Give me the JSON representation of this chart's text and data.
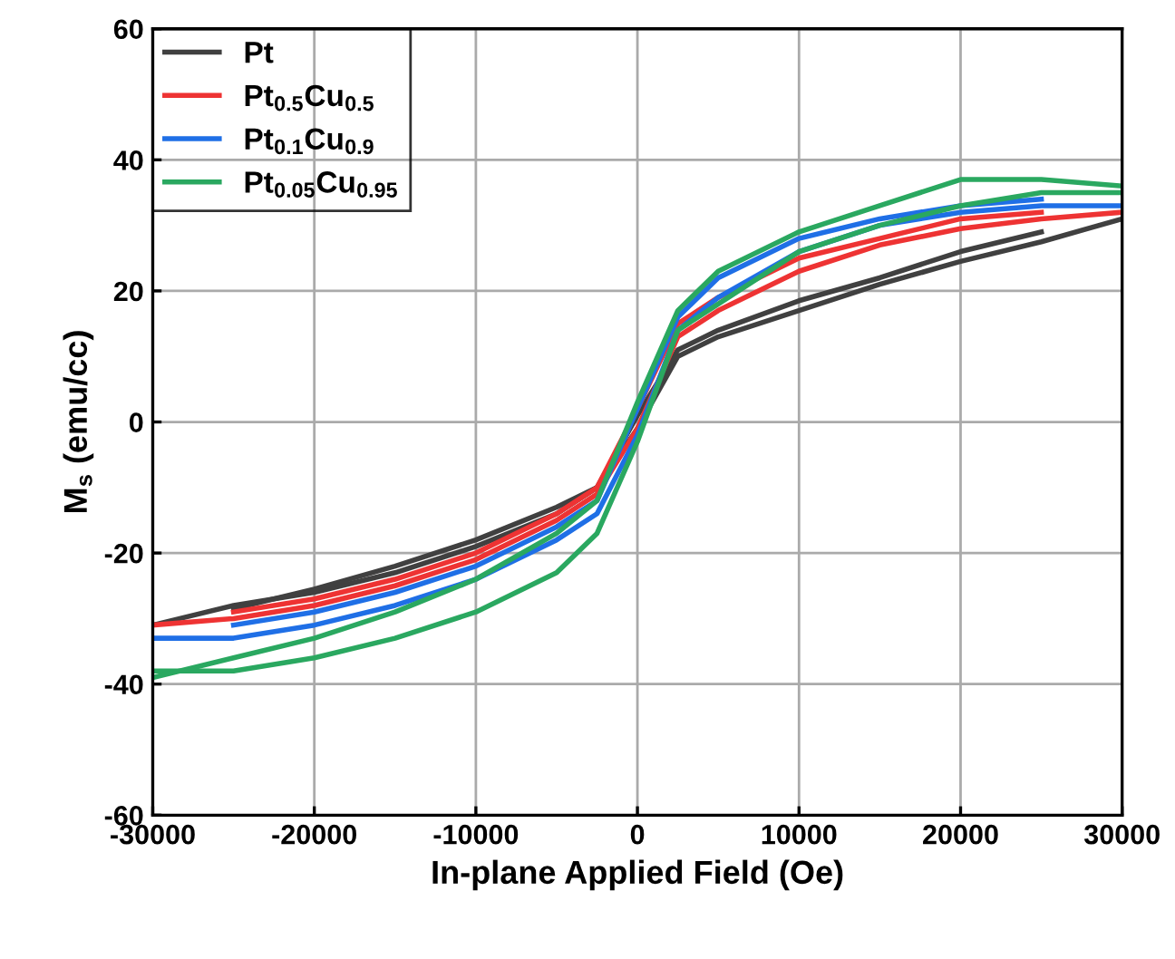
{
  "chart_data": {
    "type": "line",
    "xlabel": "In-plane Applied Field (Oe)",
    "ylabel": "M$_{s}$ (emu/cc)",
    "xlim": [
      -30000,
      30000
    ],
    "xticks": [
      -30000,
      -20000,
      -10000,
      0,
      10000,
      20000,
      30000
    ],
    "ylim": [
      -60,
      60
    ],
    "yticks": [
      -60,
      -40,
      -20,
      0,
      20,
      40,
      60
    ],
    "grid": true,
    "legend": "top left",
    "line_style": "solid",
    "marker": "none",
    "x": [
      -30000,
      -25000,
      -20000,
      -15000,
      -10000,
      -5000,
      -2500,
      0,
      2500,
      5000,
      10000,
      15000,
      20000,
      25000,
      30000
    ],
    "series": [
      {
        "name": "Pt",
        "color": "#404040",
        "values": [
          -31,
          -28,
          -26,
          -23,
          -19,
          -14,
          -10,
          -1,
          10,
          13,
          17,
          21,
          24.5,
          27.5,
          31
        ]
      },
      {
        "color": "#404040",
        "x": [
          -25000,
          -20000,
          -15000,
          -10000,
          -5000,
          -2500,
          0,
          2500,
          5000,
          10000,
          15000,
          20000,
          25000
        ],
        "values": [
          -28.5,
          -25.5,
          -22,
          -18,
          -13,
          -10,
          1,
          11,
          14,
          18.5,
          22,
          26,
          29
        ]
      },
      {
        "name": "Pt$_{0.5}$Cu$_{0.5}$",
        "color": "#ee3333",
        "values": [
          -31,
          -30,
          -28,
          -25,
          -21,
          -15,
          -11,
          -1,
          13,
          17,
          23,
          27,
          29.5,
          31,
          32
        ]
      },
      {
        "color": "#ee3333",
        "x": [
          -25000,
          -20000,
          -15000,
          -10000,
          -5000,
          -2500,
          0,
          2500,
          5000,
          10000,
          15000,
          20000,
          25000
        ],
        "values": [
          -29,
          -27,
          -24,
          -20,
          -14,
          -10,
          2,
          15,
          19,
          25,
          28,
          31,
          32
        ]
      },
      {
        "name": "Pt$_{0.1}$Cu$_{0.9}$",
        "color": "#1f6fe6",
        "values": [
          -33,
          -33,
          -31,
          -28,
          -24,
          -18,
          -14,
          -2,
          14,
          19,
          26,
          30,
          32,
          33,
          33
        ]
      },
      {
        "color": "#1f6fe6",
        "x": [
          -25000,
          -20000,
          -15000,
          -10000,
          -5000,
          -2500,
          0,
          2500,
          5000,
          10000,
          15000,
          20000,
          25000
        ],
        "values": [
          -31,
          -29,
          -26,
          -22,
          -16,
          -12,
          2,
          16,
          22,
          28,
          31,
          33,
          34
        ]
      },
      {
        "name": "Pt$_{0.05}$Cu$_{0.95}$",
        "color": "#2aa860",
        "values": [
          -38,
          -38,
          -36,
          -33,
          -29,
          -23,
          -17,
          -3,
          14,
          18,
          26,
          30,
          33,
          35,
          35
        ]
      },
      {
        "color": "#2aa860",
        "values": [
          -39,
          -36,
          -33,
          -29,
          -24,
          -17,
          -12,
          3,
          17,
          23,
          29,
          33,
          37,
          37,
          36
        ]
      }
    ]
  }
}
